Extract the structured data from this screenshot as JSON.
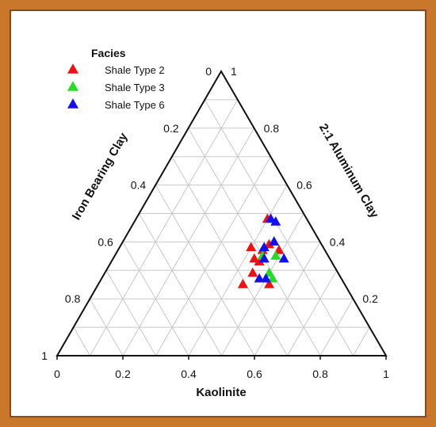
{
  "chart_data": {
    "type": "ternary-scatter",
    "axes": {
      "bottom": {
        "label": "Kaolinite",
        "ticks": [
          "0",
          "0.2",
          "0.4",
          "0.6",
          "0.8",
          "1"
        ]
      },
      "left": {
        "label": "Iron Bearing Clay",
        "ticks": [
          "0",
          "0.2",
          "0.4",
          "0.6",
          "0.8",
          "1"
        ]
      },
      "right": {
        "label": "2:1 Aluminum Clay",
        "ticks": [
          "0.2",
          "0.4",
          "0.6",
          "0.8",
          "1"
        ]
      }
    },
    "legend": {
      "title": "Facies",
      "placement": "top-left"
    },
    "grid": true,
    "series": [
      {
        "name": "Shale Type 2",
        "color": "#ee1111",
        "points": [
          {
            "kaolinite": 0.4,
            "aluminum": 0.48,
            "iron": 0.12
          },
          {
            "kaolinite": 0.45,
            "aluminum": 0.39,
            "iron": 0.16
          },
          {
            "kaolinite": 0.44,
            "aluminum": 0.37,
            "iron": 0.19
          },
          {
            "kaolinite": 0.43,
            "aluminum": 0.34,
            "iron": 0.23
          },
          {
            "kaolinite": 0.4,
            "aluminum": 0.38,
            "iron": 0.22
          },
          {
            "kaolinite": 0.49,
            "aluminum": 0.37,
            "iron": 0.14
          },
          {
            "kaolinite": 0.45,
            "aluminum": 0.33,
            "iron": 0.22
          },
          {
            "kaolinite": 0.45,
            "aluminum": 0.29,
            "iron": 0.26
          },
          {
            "kaolinite": 0.52,
            "aluminum": 0.25,
            "iron": 0.23
          },
          {
            "kaolinite": 0.44,
            "aluminum": 0.25,
            "iron": 0.31
          }
        ]
      },
      {
        "name": "Shale Type 3",
        "color": "#22dd22",
        "points": [
          {
            "kaolinite": 0.45,
            "aluminum": 0.35,
            "iron": 0.2
          },
          {
            "kaolinite": 0.49,
            "aluminum": 0.35,
            "iron": 0.16
          },
          {
            "kaolinite": 0.5,
            "aluminum": 0.29,
            "iron": 0.21
          },
          {
            "kaolinite": 0.52,
            "aluminum": 0.27,
            "iron": 0.21
          }
        ]
      },
      {
        "name": "Shale Type 6",
        "color": "#1111ee",
        "points": [
          {
            "kaolinite": 0.41,
            "aluminum": 0.48,
            "iron": 0.11
          },
          {
            "kaolinite": 0.43,
            "aluminum": 0.47,
            "iron": 0.1
          },
          {
            "kaolinite": 0.46,
            "aluminum": 0.4,
            "iron": 0.14
          },
          {
            "kaolinite": 0.44,
            "aluminum": 0.38,
            "iron": 0.18
          },
          {
            "kaolinite": 0.46,
            "aluminum": 0.34,
            "iron": 0.2
          },
          {
            "kaolinite": 0.52,
            "aluminum": 0.34,
            "iron": 0.14
          },
          {
            "kaolinite": 0.48,
            "aluminum": 0.27,
            "iron": 0.25
          },
          {
            "kaolinite": 0.5,
            "aluminum": 0.27,
            "iron": 0.23
          }
        ]
      }
    ]
  }
}
